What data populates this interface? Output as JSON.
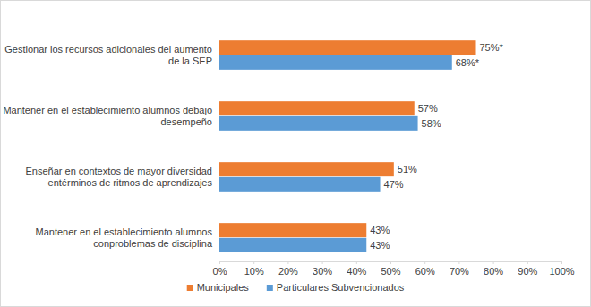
{
  "chart_data": {
    "type": "bar",
    "orientation": "horizontal",
    "categories": [
      "Gestionar los recursos adicionales del aumento\nde la SEP",
      "Mantener en el establecimiento alumnos debajo\ndesempeño",
      "Enseñar en contextos de mayor diversidad\nentérminos de ritmos de aprendizajes",
      "Mantener en el establecimiento alumnos\nconproblemas de disciplina"
    ],
    "series": [
      {
        "name": "Municipales",
        "color": "#ed7d31",
        "values": [
          75,
          57,
          51,
          43
        ],
        "value_labels": [
          "75%*",
          "57%",
          "51%",
          "43%"
        ]
      },
      {
        "name": "Particulares Subvencionados",
        "color": "#5b9bd5",
        "values": [
          68,
          58,
          47,
          43
        ],
        "value_labels": [
          "68%*",
          "58%",
          "47%",
          "43%"
        ]
      }
    ],
    "xlim": [
      0,
      100
    ],
    "xticks": [
      {
        "value": 0,
        "label": "0%"
      },
      {
        "value": 10,
        "label": "10%"
      },
      {
        "value": 20,
        "label": "20%"
      },
      {
        "value": 30,
        "label": "30%"
      },
      {
        "value": 40,
        "label": "40%"
      },
      {
        "value": 50,
        "label": "50%"
      },
      {
        "value": 60,
        "label": "60%"
      },
      {
        "value": 70,
        "label": "70%"
      },
      {
        "value": 80,
        "label": "80%"
      },
      {
        "value": 90,
        "label": "90%"
      },
      {
        "value": 100,
        "label": "100%"
      }
    ],
    "grid": false,
    "data_labels": true,
    "legend": "bottom"
  }
}
